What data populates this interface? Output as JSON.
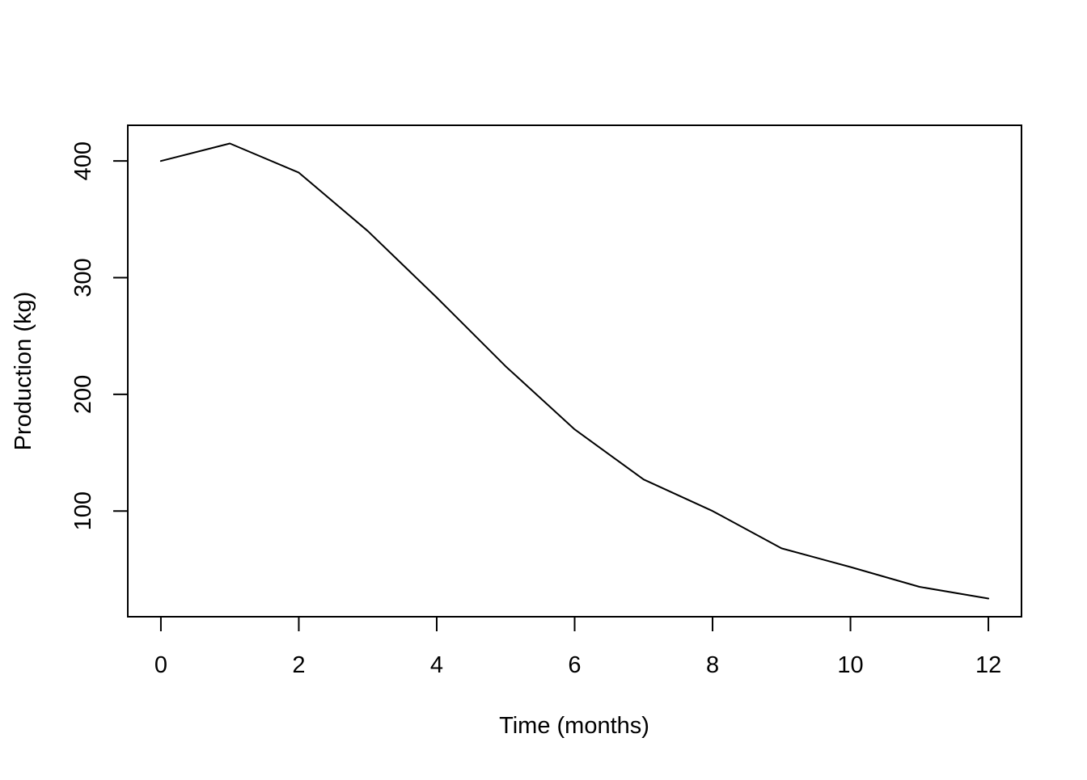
{
  "chart_data": {
    "type": "line",
    "series_name": "Production",
    "x": [
      0,
      1,
      2,
      3,
      4,
      5,
      6,
      7,
      8,
      9,
      10,
      11,
      12
    ],
    "y": [
      400,
      415,
      390,
      340,
      283,
      224,
      170,
      127,
      100,
      68,
      52,
      35,
      25
    ],
    "title": "",
    "xlabel": "Time (months)",
    "ylabel": "Production (kg)",
    "x_tick_labels": [
      "0",
      "2",
      "4",
      "6",
      "8",
      "10",
      "12"
    ],
    "x_tick_values": [
      0,
      2,
      4,
      6,
      8,
      10,
      12
    ],
    "y_tick_labels": [
      "100",
      "200",
      "300",
      "400"
    ],
    "y_tick_values": [
      100,
      200,
      300,
      400
    ],
    "xlim": [
      -0.48,
      12.48
    ],
    "ylim": [
      9.4,
      430.6
    ],
    "grid": false,
    "legend_position": "none",
    "line_color": "#000000",
    "axis_color": "#000000",
    "background_color": "#ffffff"
  }
}
